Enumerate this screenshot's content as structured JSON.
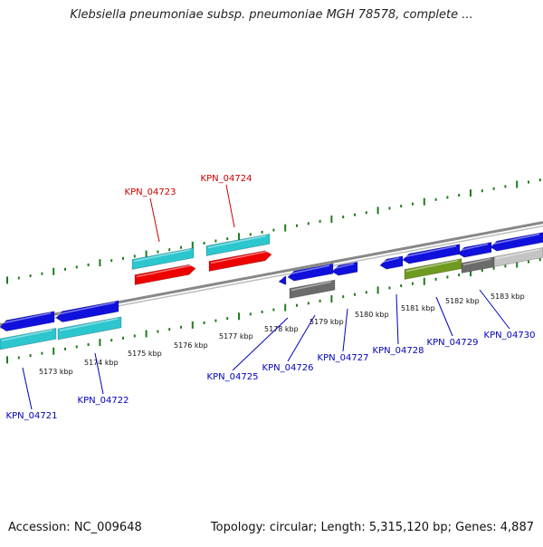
{
  "title": "Klebsiella pneumoniae subsp. pneumoniae MGH 78578, complete ...",
  "footer": {
    "accession": "Accession: NC_009648",
    "summary": "Topology: circular; Length: 5,315,120 bp; Genes: 4,887"
  },
  "colors": {
    "backbone": "#888888",
    "ticks": "#1e7d1e",
    "forward_label": "#cc0000",
    "reverse_label": "#0000bb",
    "gene_blue": "#1010dd",
    "gene_cyan": "#2cc6cf",
    "gene_red": "#ee0000",
    "gene_gray": "#6b6b6b",
    "gene_olive": "#6f9a20",
    "gene_lightgray": "#c4c4c4"
  },
  "kbp_labels": [
    "5173 kbp",
    "5174 kbp",
    "5175 kbp",
    "5176 kbp",
    "5177 kbp",
    "5178 kbp",
    "5179 kbp",
    "5180 kbp",
    "5181 kbp",
    "5182 kbp",
    "5183 kbp"
  ],
  "gene_labels": {
    "forward": [
      "KPN_04723",
      "KPN_04724"
    ],
    "reverse": [
      "KPN_04721",
      "KPN_04722",
      "KPN_04725",
      "KPN_04726",
      "KPN_04727",
      "KPN_04728",
      "KPN_04729",
      "KPN_04730"
    ]
  }
}
